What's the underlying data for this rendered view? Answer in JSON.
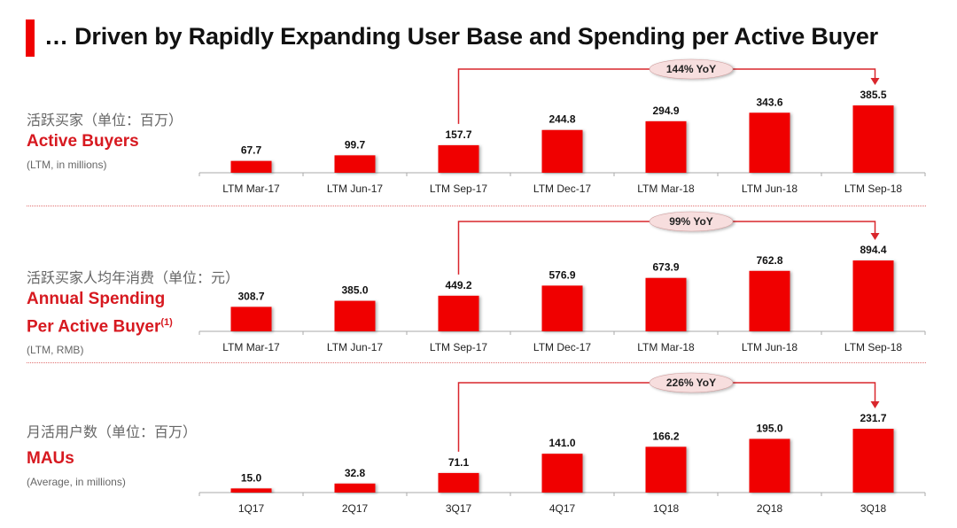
{
  "title": "… Driven by Rapidly Expanding User Base and Spending per Active Buyer",
  "colors": {
    "bar": "#f00000",
    "accent": "#d71920",
    "axis": "#aaaaaa",
    "connector": "#d9262c",
    "badge": "#f7dede"
  },
  "panels": [
    {
      "cn_label": "活跃买家（单位：百万）",
      "en_label": "Active Buyers",
      "en_label_2": "",
      "footnote": "",
      "note": "(LTM, in millions)"
    },
    {
      "cn_label": "活跃买家人均年消费（单位：元）",
      "en_label": "Annual Spending",
      "en_label_2": "Per Active Buyer",
      "footnote": "(1)",
      "note": "(LTM, RMB)"
    },
    {
      "cn_label": "月活用户数（单位：百万）",
      "en_label": "MAUs",
      "en_label_2": "",
      "footnote": "",
      "note": "(Average, in millions)"
    }
  ],
  "chart_data": [
    {
      "type": "bar",
      "title": "Active Buyers",
      "ylabel": "LTM, in millions",
      "categories": [
        "LTM Mar-17",
        "LTM Jun-17",
        "LTM Sep-17",
        "LTM Dec-17",
        "LTM Mar-18",
        "LTM Jun-18",
        "LTM Sep-18"
      ],
      "values": [
        67.7,
        99.7,
        157.7,
        244.8,
        294.9,
        343.6,
        385.5
      ],
      "labels": [
        "67.7",
        "99.7",
        "157.7",
        "244.8",
        "294.9",
        "343.6",
        "385.5"
      ],
      "annotation": {
        "text": "144% YoY",
        "from_index": 2,
        "to_index": 6
      },
      "grid": false
    },
    {
      "type": "bar",
      "title": "Annual Spending Per Active Buyer",
      "ylabel": "LTM, RMB",
      "categories": [
        "LTM Mar-17",
        "LTM Jun-17",
        "LTM Sep-17",
        "LTM Dec-17",
        "LTM Mar-18",
        "LTM Jun-18",
        "LTM Sep-18"
      ],
      "values": [
        308.7,
        385.0,
        449.2,
        576.9,
        673.9,
        762.8,
        894.4
      ],
      "labels": [
        "308.7",
        "385.0",
        "449.2",
        "576.9",
        "673.9",
        "762.8",
        "894.4"
      ],
      "annotation": {
        "text": "99% YoY",
        "from_index": 2,
        "to_index": 6
      },
      "grid": false
    },
    {
      "type": "bar",
      "title": "MAUs",
      "ylabel": "Average, in millions",
      "categories": [
        "1Q17",
        "2Q17",
        "3Q17",
        "4Q17",
        "1Q18",
        "2Q18",
        "3Q18"
      ],
      "values": [
        15.0,
        32.8,
        71.1,
        141.0,
        166.2,
        195.0,
        231.7
      ],
      "labels": [
        "15.0",
        "32.8",
        "71.1",
        "141.0",
        "166.2",
        "195.0",
        "231.7"
      ],
      "annotation": {
        "text": "226% YoY",
        "from_index": 2,
        "to_index": 6
      },
      "grid": false
    }
  ]
}
